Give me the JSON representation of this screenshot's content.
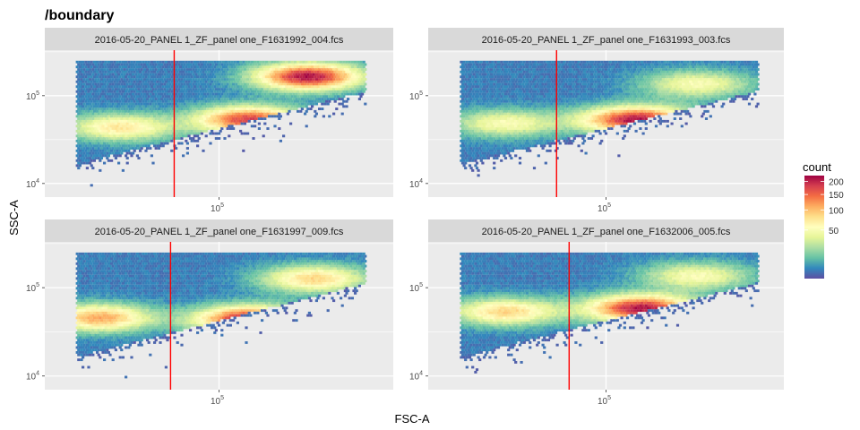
{
  "chart_data": {
    "type": "heatmap",
    "title": "/boundary",
    "xlabel": "FSC-A",
    "ylabel": "SSC-A",
    "x_scale": "log10",
    "y_scale": "log10",
    "x_tick_label_base": "10",
    "x_tick_label_exp": "5",
    "y_tick_labels": [
      {
        "base": "10",
        "exp": "5",
        "value": 100000
      },
      {
        "base": "10",
        "exp": "4",
        "value": 10000
      }
    ],
    "panels": [
      {
        "name": "2016-05-20_PANEL 1_ZF_panel one_F1631992_004.fcs",
        "boundary_fsc": 70000,
        "clusters": [
          {
            "fsc": 200000,
            "ssc": 170000,
            "weight": 1.0
          },
          {
            "fsc": 125000,
            "ssc": 55000,
            "weight": 0.9
          },
          {
            "fsc": 45000,
            "ssc": 45000,
            "weight": 0.55
          }
        ]
      },
      {
        "name": "2016-05-20_PANEL 1_ZF_panel one_F1631993_003.fcs",
        "boundary_fsc": 68000,
        "clusters": [
          {
            "fsc": 125000,
            "ssc": 55000,
            "weight": 1.0
          },
          {
            "fsc": 200000,
            "ssc": 140000,
            "weight": 0.45
          },
          {
            "fsc": 45000,
            "ssc": 50000,
            "weight": 0.45
          }
        ]
      },
      {
        "name": "2016-05-20_PANEL 1_ZF_panel one_F1631997_009.fcs",
        "boundary_fsc": 68000,
        "clusters": [
          {
            "fsc": 125000,
            "ssc": 45000,
            "weight": 1.0
          },
          {
            "fsc": 38000,
            "ssc": 47000,
            "weight": 0.7
          },
          {
            "fsc": 210000,
            "ssc": 130000,
            "weight": 0.6
          }
        ]
      },
      {
        "name": "2016-05-20_PANEL 1_ZF_panel one_F1632006_005.fcs",
        "boundary_fsc": 75000,
        "clusters": [
          {
            "fsc": 130000,
            "ssc": 60000,
            "weight": 1.0
          },
          {
            "fsc": 45000,
            "ssc": 55000,
            "weight": 0.6
          },
          {
            "fsc": 200000,
            "ssc": 140000,
            "weight": 0.45
          }
        ]
      }
    ],
    "legend": {
      "title": "count",
      "placement": "right",
      "ticks": [
        "200",
        "150",
        "100",
        "50"
      ],
      "tick_values": [
        200,
        150,
        100,
        50
      ],
      "range": [
        0,
        225
      ]
    },
    "colors": {
      "panel_background": "#ebebeb",
      "strip_background": "#d9d9d9",
      "gridline": "#ffffff",
      "boundary_line": "#ff0000",
      "palette": [
        "#5e4fa2",
        "#3288bd",
        "#66c2a5",
        "#abdda4",
        "#e6f598",
        "#ffffbf",
        "#fee08b",
        "#fdae61",
        "#f46d43",
        "#d53e4f",
        "#9e0142"
      ]
    }
  }
}
